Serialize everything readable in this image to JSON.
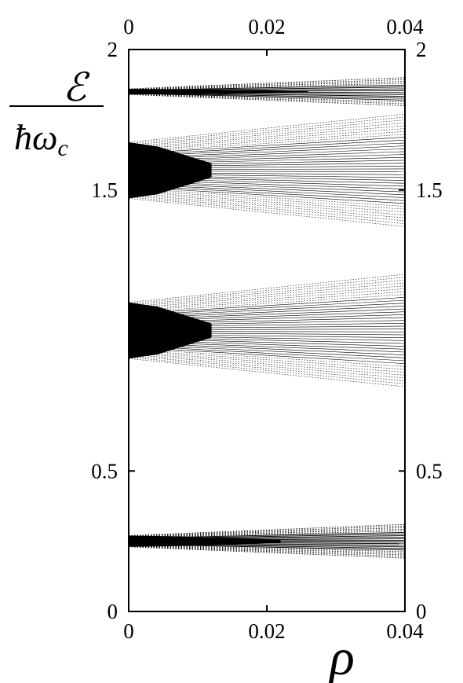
{
  "chart_data": {
    "type": "scatter",
    "title": "",
    "xlabel": "ρ",
    "ylabel": {
      "numerator": "ℰ",
      "denominator_main": "ħω",
      "denominator_sub": "c"
    },
    "xlim": [
      0,
      0.04
    ],
    "ylim": [
      0,
      2
    ],
    "x_ticks": [
      0,
      0.02,
      0.04
    ],
    "x_tick_labels": [
      "0",
      "0.02",
      "0.04"
    ],
    "y_ticks": [
      0,
      0.5,
      1.5,
      2
    ],
    "y_tick_labels": [
      "0",
      "0.5",
      "1.5",
      "2"
    ],
    "mirror_axes": true,
    "grid": false,
    "bands": [
      {
        "center": 0.25,
        "halfwidth_at_0": 0.02,
        "halfwidth_at_max": 0.06,
        "lines": 22,
        "dense_fraction": 0.55
      },
      {
        "center": 1.0,
        "halfwidth_at_0": 0.1,
        "halfwidth_at_max": 0.2,
        "lines": 40,
        "dense_fraction": 0.3
      },
      {
        "center": 1.57,
        "halfwidth_at_0": 0.1,
        "halfwidth_at_max": 0.2,
        "lines": 40,
        "dense_fraction": 0.3
      },
      {
        "center": 1.85,
        "halfwidth_at_0": 0.01,
        "halfwidth_at_max": 0.05,
        "lines": 16,
        "dense_fraction": 0.65
      }
    ]
  }
}
